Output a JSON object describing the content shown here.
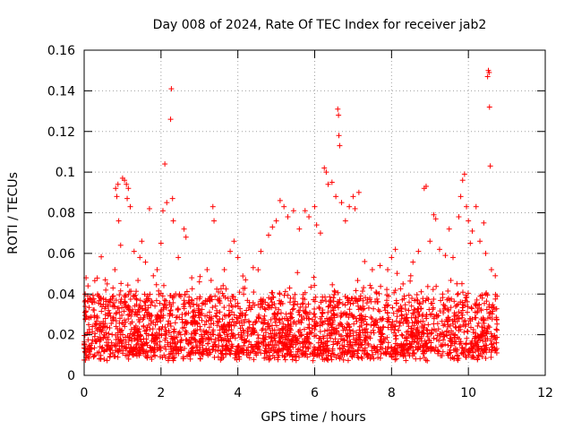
{
  "chart_data": {
    "type": "scatter",
    "title": "Day 008 of 2024, Rate Of TEC Index for receiver jab2",
    "xlabel": "GPS time / hours",
    "ylabel": "ROTI / TECUs",
    "xlim": [
      0,
      12
    ],
    "ylim": [
      0,
      0.16
    ],
    "x_ticks": [
      0,
      2,
      4,
      6,
      8,
      10,
      12
    ],
    "x_tick_labels": [
      "0",
      "2",
      "4",
      "6",
      "8",
      "10",
      "12"
    ],
    "y_ticks": [
      0,
      0.02,
      0.04,
      0.06,
      0.08,
      0.1,
      0.12,
      0.14,
      0.16
    ],
    "y_tick_labels": [
      "0",
      "0.02",
      "0.04",
      "0.06",
      "0.08",
      "0.1",
      "0.12",
      "0.14",
      "0.16"
    ],
    "grid": true,
    "marker": "+",
    "color": "#ff0000",
    "series": [
      {
        "name": "ROTI",
        "note": "dense point cloud between 0 and 10.75 h, mostly 0.01-0.04 TECU/min, with representative values below",
        "x_range": [
          0.0,
          10.75
        ],
        "typical_band": [
          0.01,
          0.04
        ],
        "points": [
          [
            0.05,
            0.048
          ],
          [
            0.1,
            0.044
          ],
          [
            0.15,
            0.038
          ],
          [
            0.2,
            0.036
          ],
          [
            0.35,
            0.04
          ],
          [
            0.5,
            0.035
          ],
          [
            0.6,
            0.045
          ],
          [
            0.75,
            0.043
          ],
          [
            0.8,
            0.052
          ],
          [
            0.82,
            0.092
          ],
          [
            0.85,
            0.088
          ],
          [
            0.88,
            0.094
          ],
          [
            0.9,
            0.076
          ],
          [
            0.95,
            0.064
          ],
          [
            1.0,
            0.097
          ],
          [
            1.05,
            0.096
          ],
          [
            1.1,
            0.094
          ],
          [
            1.12,
            0.087
          ],
          [
            1.15,
            0.092
          ],
          [
            1.2,
            0.083
          ],
          [
            1.3,
            0.061
          ],
          [
            1.45,
            0.058
          ],
          [
            1.5,
            0.066
          ],
          [
            1.7,
            0.082
          ],
          [
            1.8,
            0.049
          ],
          [
            1.9,
            0.052
          ],
          [
            2.0,
            0.065
          ],
          [
            2.05,
            0.081
          ],
          [
            2.1,
            0.104
          ],
          [
            2.15,
            0.085
          ],
          [
            2.25,
            0.126
          ],
          [
            2.27,
            0.141
          ],
          [
            2.3,
            0.087
          ],
          [
            2.32,
            0.076
          ],
          [
            2.45,
            0.058
          ],
          [
            2.6,
            0.072
          ],
          [
            2.65,
            0.068
          ],
          [
            2.8,
            0.048
          ],
          [
            3.0,
            0.046
          ],
          [
            3.2,
            0.052
          ],
          [
            3.35,
            0.083
          ],
          [
            3.38,
            0.076
          ],
          [
            3.5,
            0.041
          ],
          [
            3.65,
            0.052
          ],
          [
            3.8,
            0.061
          ],
          [
            3.9,
            0.066
          ],
          [
            4.0,
            0.058
          ],
          [
            4.2,
            0.047
          ],
          [
            4.4,
            0.053
          ],
          [
            4.6,
            0.061
          ],
          [
            4.8,
            0.069
          ],
          [
            4.9,
            0.073
          ],
          [
            5.0,
            0.076
          ],
          [
            5.1,
            0.086
          ],
          [
            5.2,
            0.083
          ],
          [
            5.3,
            0.078
          ],
          [
            5.45,
            0.081
          ],
          [
            5.6,
            0.072
          ],
          [
            5.75,
            0.081
          ],
          [
            5.85,
            0.078
          ],
          [
            6.0,
            0.083
          ],
          [
            6.05,
            0.074
          ],
          [
            6.15,
            0.07
          ],
          [
            6.25,
            0.102
          ],
          [
            6.3,
            0.1
          ],
          [
            6.35,
            0.094
          ],
          [
            6.45,
            0.095
          ],
          [
            6.55,
            0.088
          ],
          [
            6.6,
            0.131
          ],
          [
            6.62,
            0.128
          ],
          [
            6.63,
            0.118
          ],
          [
            6.65,
            0.113
          ],
          [
            6.7,
            0.085
          ],
          [
            6.8,
            0.076
          ],
          [
            6.9,
            0.083
          ],
          [
            7.0,
            0.088
          ],
          [
            7.05,
            0.082
          ],
          [
            7.15,
            0.09
          ],
          [
            7.3,
            0.056
          ],
          [
            7.5,
            0.052
          ],
          [
            7.7,
            0.054
          ],
          [
            7.9,
            0.052
          ],
          [
            8.0,
            0.058
          ],
          [
            8.1,
            0.062
          ],
          [
            8.3,
            0.045
          ],
          [
            8.5,
            0.049
          ],
          [
            8.7,
            0.061
          ],
          [
            8.85,
            0.092
          ],
          [
            8.9,
            0.093
          ],
          [
            9.0,
            0.066
          ],
          [
            9.1,
            0.079
          ],
          [
            9.15,
            0.077
          ],
          [
            9.25,
            0.062
          ],
          [
            9.4,
            0.059
          ],
          [
            9.5,
            0.072
          ],
          [
            9.6,
            0.058
          ],
          [
            9.75,
            0.078
          ],
          [
            9.8,
            0.088
          ],
          [
            9.85,
            0.096
          ],
          [
            9.9,
            0.099
          ],
          [
            9.95,
            0.083
          ],
          [
            10.0,
            0.076
          ],
          [
            10.05,
            0.065
          ],
          [
            10.1,
            0.071
          ],
          [
            10.2,
            0.083
          ],
          [
            10.3,
            0.066
          ],
          [
            10.4,
            0.075
          ],
          [
            10.45,
            0.06
          ],
          [
            10.5,
            0.147
          ],
          [
            10.52,
            0.15
          ],
          [
            10.54,
            0.149
          ],
          [
            10.55,
            0.132
          ],
          [
            10.57,
            0.103
          ],
          [
            10.6,
            0.052
          ],
          [
            10.7,
            0.049
          ]
        ]
      }
    ]
  }
}
